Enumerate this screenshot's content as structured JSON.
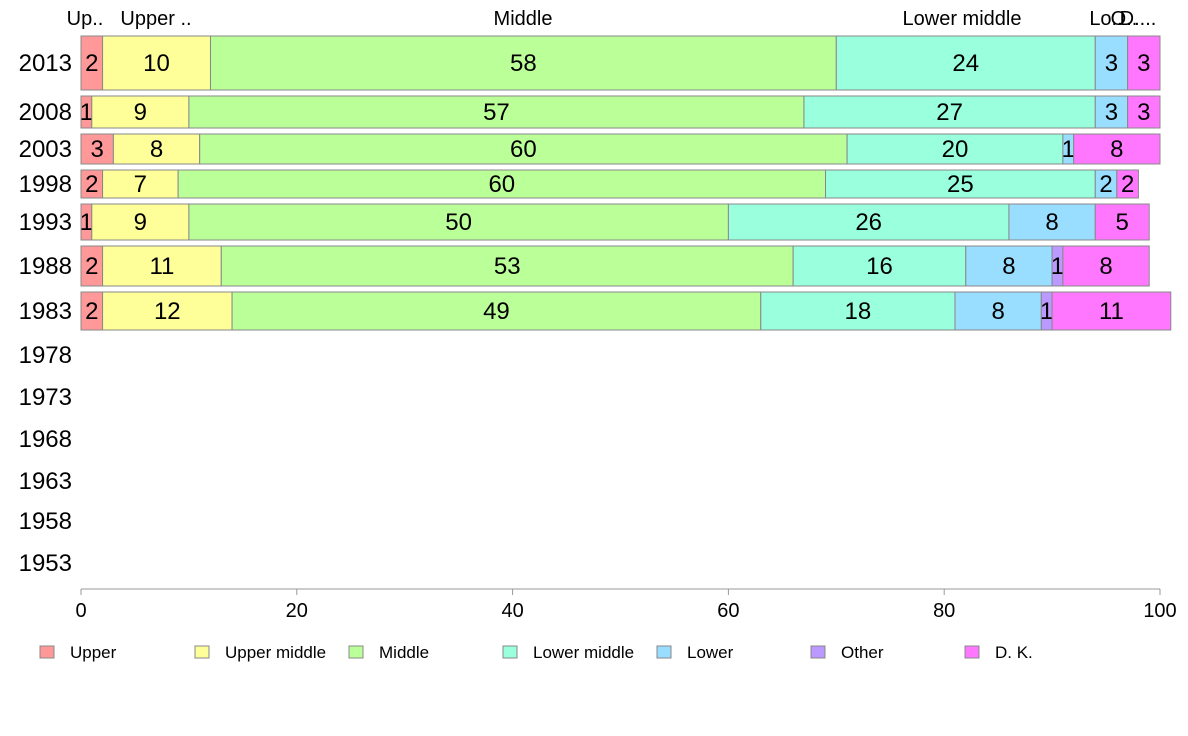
{
  "chart_data": {
    "type": "bar",
    "orientation": "horizontal",
    "stacked": true,
    "categories": [
      "2013",
      "2008",
      "2003",
      "1998",
      "1993",
      "1988",
      "1983",
      "1978",
      "1973",
      "1968",
      "1963",
      "1958",
      "1953"
    ],
    "series": [
      {
        "name": "Upper",
        "color": "#ff9999",
        "values": [
          2,
          1,
          3,
          2,
          1,
          2,
          2,
          null,
          null,
          null,
          null,
          null,
          null
        ]
      },
      {
        "name": "Upper middle",
        "color": "#ffff99",
        "values": [
          10,
          9,
          8,
          7,
          9,
          11,
          12,
          null,
          null,
          null,
          null,
          null,
          null
        ]
      },
      {
        "name": "Middle",
        "color": "#bbff99",
        "values": [
          58,
          57,
          60,
          60,
          50,
          53,
          49,
          null,
          null,
          null,
          null,
          null,
          null
        ]
      },
      {
        "name": "Lower middle",
        "color": "#99ffdd",
        "values": [
          24,
          27,
          20,
          25,
          26,
          16,
          18,
          null,
          null,
          null,
          null,
          null,
          null
        ]
      },
      {
        "name": "Lower",
        "color": "#99ddff",
        "values": [
          3,
          3,
          1,
          2,
          8,
          8,
          8,
          null,
          null,
          null,
          null,
          null,
          null
        ]
      },
      {
        "name": "Other",
        "color": "#bb99ff",
        "values": [
          0,
          0,
          0,
          0,
          0,
          1,
          1,
          null,
          null,
          null,
          null,
          null,
          null
        ]
      },
      {
        "name": "D. K.",
        "color": "#ff77ff",
        "values": [
          3,
          3,
          8,
          2,
          5,
          8,
          11,
          null,
          null,
          null,
          null,
          null,
          null
        ]
      }
    ],
    "top_labels": [
      "Up..",
      "Upper ..",
      "Middle",
      "Lower middle",
      "Lo..",
      "O..",
      "D...."
    ],
    "x_ticks": [
      0,
      20,
      40,
      60,
      80,
      100
    ],
    "xlim": [
      0,
      100
    ],
    "title": "",
    "xlabel": "",
    "ylabel": "",
    "grid": false,
    "legend_position": "bottom"
  }
}
